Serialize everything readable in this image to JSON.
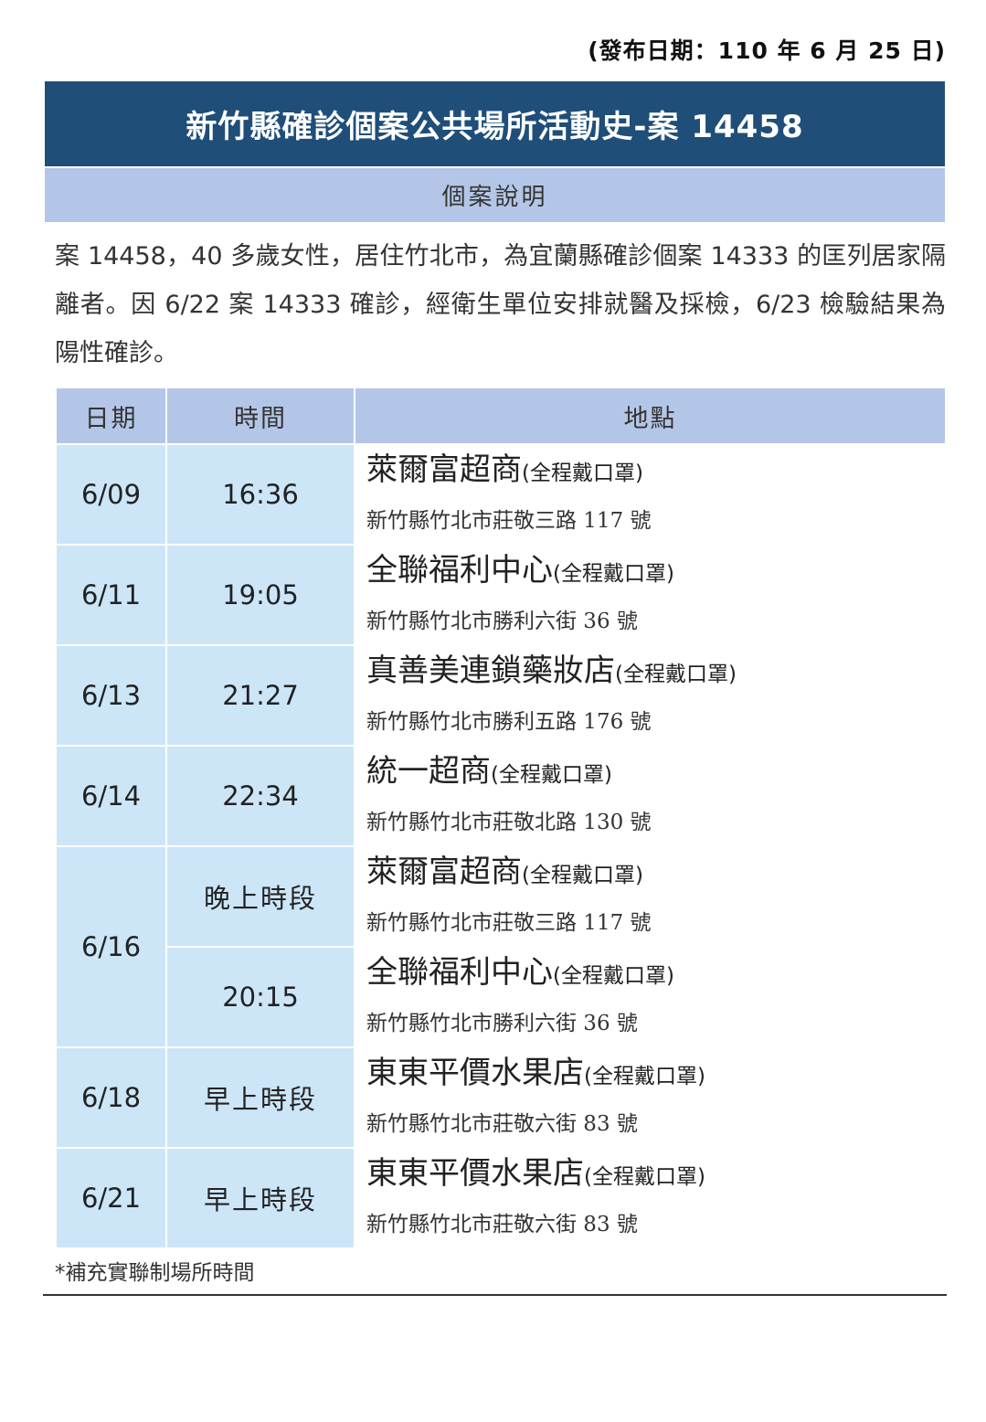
{
  "release_date": "(發布日期：110 年 6 月 25 日)",
  "title": "新竹縣確診個案公共場所活動史-案 14458",
  "section_title": "個案說明",
  "description": "案 14458，40 多歲女性，居住竹北市，為宜蘭縣確診個案 14333 的匡列居家隔離者。因 6/22 案 14333 確診，經衛生單位安排就醫及採檢，6/23 檢驗結果為陽性確診。",
  "table": {
    "headers": [
      "日期",
      "時間",
      "地點"
    ],
    "mask_note": "(全程戴口罩)",
    "rows": [
      {
        "date": "6/09",
        "time": "16:36",
        "place": "萊爾富超商",
        "address": "新竹縣竹北市莊敬三路 117 號"
      },
      {
        "date": "6/11",
        "time": "19:05",
        "place": "全聯福利中心",
        "address": "新竹縣竹北市勝利六街 36 號"
      },
      {
        "date": "6/13",
        "time": "21:27",
        "place": "真善美連鎖藥妝店",
        "address": "新竹縣竹北市勝利五路 176 號"
      },
      {
        "date": "6/14",
        "time": "22:34",
        "place": "統一超商",
        "address": "新竹縣竹北市莊敬北路 130 號"
      },
      {
        "date": "6/16",
        "time": "晚上時段",
        "place": "萊爾富超商",
        "address": "新竹縣竹北市莊敬三路 117 號"
      },
      {
        "date": "",
        "time": "20:15",
        "place": "全聯福利中心",
        "address": "新竹縣竹北市勝利六街 36 號"
      },
      {
        "date": "6/18",
        "time": "早上時段",
        "place": "東東平價水果店",
        "address": "新竹縣竹北市莊敬六街 83 號"
      },
      {
        "date": "6/21",
        "time": "早上時段",
        "place": "東東平價水果店",
        "address": "新竹縣竹北市莊敬六街 83 號"
      }
    ]
  },
  "footnote": "*補充實聯制場所時間"
}
